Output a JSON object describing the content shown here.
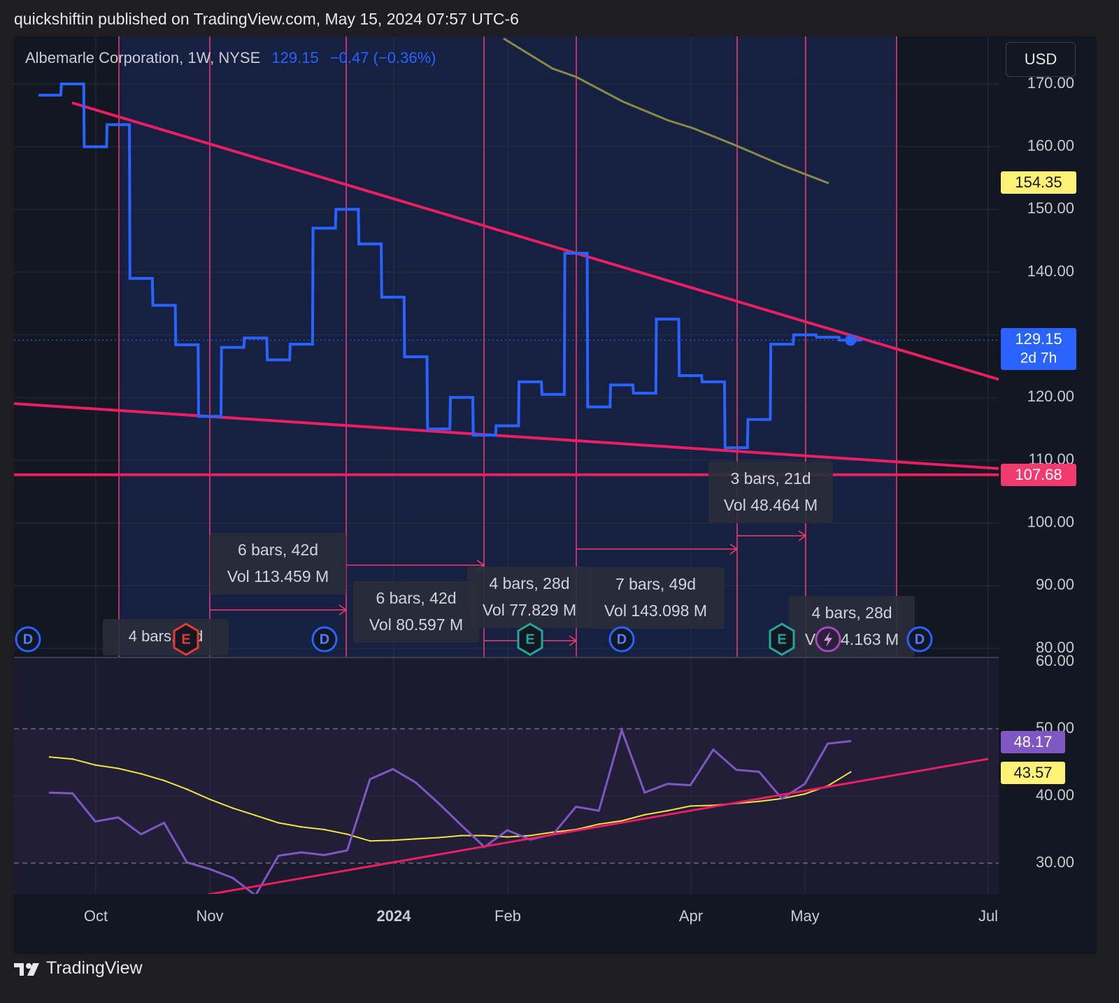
{
  "header": {
    "publisher_line": "quickshiftin published on TradingView.com, May 15, 2024 07:57 UTC-6"
  },
  "legend": {
    "symbol": "Albemarle Corporation, 1W, NYSE",
    "last": "129.15",
    "change": "−0.47 (−0.36%)"
  },
  "toolbar": {
    "currency": "USD"
  },
  "footer": {
    "brand": "TradingView",
    "logo_icon": "tradingview-logo-icon"
  },
  "colors": {
    "price_line": "#2962ff",
    "ma_line": "#8b8a45",
    "trendline": "#e91e63",
    "marker_line": "#f23a6e",
    "rsi_line": "#7e57c2",
    "rsi_ma": "#f0e442",
    "price_label_blue": "#2962ff",
    "price_label_yellow": "#fff176",
    "price_label_pink": "#f23a6e",
    "rsi_label_purple": "#7e57c2"
  },
  "chart_data": [
    {
      "type": "line",
      "title": "Albemarle Corporation, 1W, NYSE",
      "x": [
        "2023-09-11",
        "2023-09-18",
        "2023-09-25",
        "2023-10-02",
        "2023-10-09",
        "2023-10-16",
        "2023-10-23",
        "2023-10-30",
        "2023-11-06",
        "2023-11-13",
        "2023-11-20",
        "2023-11-27",
        "2023-12-04",
        "2023-12-11",
        "2023-12-18",
        "2023-12-25",
        "2024-01-01",
        "2024-01-08",
        "2024-01-15",
        "2024-01-22",
        "2024-01-29",
        "2024-02-05",
        "2024-02-12",
        "2024-02-19",
        "2024-02-26",
        "2024-03-04",
        "2024-03-11",
        "2024-03-18",
        "2024-03-25",
        "2024-04-01",
        "2024-04-08",
        "2024-04-15",
        "2024-04-22",
        "2024-04-29",
        "2024-05-06",
        "2024-05-13"
      ],
      "series": [
        {
          "values": [
            168.2,
            170.0,
            160.0,
            163.5,
            139.0,
            134.7,
            128.4,
            117.0,
            128.0,
            129.5,
            126.0,
            128.5,
            147.0,
            150.0,
            144.5,
            136.0,
            126.5,
            115.0,
            120.0,
            114.0,
            115.5,
            122.5,
            120.5,
            143.0,
            118.5,
            122.0,
            120.7,
            132.5,
            123.5,
            122.5,
            112.0,
            116.5,
            128.5,
            130.0,
            129.62,
            129.15
          ]
        }
      ],
      "price_labels": [
        "154.35",
        "129.15",
        "2d 7h",
        "107.68"
      ],
      "y_ticks": [
        "170.00",
        "160.00",
        "150.00",
        "140.00",
        "130.00",
        "120.00",
        "110.00",
        "100.00",
        "90.00",
        "80.00"
      ],
      "ylim": [
        80,
        173
      ],
      "x_ticks": [
        "Oct",
        "Nov",
        "2024",
        "Feb",
        "Apr",
        "May",
        "Jul"
      ],
      "horizontal_level": 107.68,
      "range_labels": [
        {
          "bars": "4 bars, 28d",
          "vol": "4 bars, E d"
        },
        {
          "bars": "6 bars, 42d",
          "vol": "Vol 113.459 M"
        },
        {
          "bars": "6 bars, 42d",
          "vol": "Vol 80.597 M"
        },
        {
          "bars": "4 bars, 28d",
          "vol": "Vol 77.829 M"
        },
        {
          "bars": "7 bars, 49d",
          "vol": "Vol 143.098 M"
        },
        {
          "bars": "3 bars, 21d",
          "vol": "Vol 48.464 M"
        },
        {
          "bars": "4 bars, 28d",
          "vol": "Vol 54.163 M"
        }
      ],
      "event_icons": [
        "dividend-icon",
        "earnings-icon",
        "dividend-icon",
        "earnings-icon",
        "dividend-icon",
        "earnings-icon",
        "split-icon",
        "dividend-icon"
      ],
      "event_letters": {
        "dividend": "D",
        "earnings": "E"
      }
    },
    {
      "type": "line",
      "title": "",
      "x": [
        "2023-09-11",
        "2023-09-18",
        "2023-09-25",
        "2023-10-02",
        "2023-10-09",
        "2023-10-16",
        "2023-10-23",
        "2023-10-30",
        "2023-11-06",
        "2023-11-13",
        "2023-11-20",
        "2023-11-27",
        "2023-12-04",
        "2023-12-11",
        "2023-12-18",
        "2023-12-25",
        "2024-01-01",
        "2024-01-08",
        "2024-01-15",
        "2024-01-22",
        "2024-01-29",
        "2024-02-05",
        "2024-02-12",
        "2024-02-19",
        "2024-02-26",
        "2024-03-04",
        "2024-03-11",
        "2024-03-18",
        "2024-03-25",
        "2024-04-01",
        "2024-04-08",
        "2024-04-15",
        "2024-04-22",
        "2024-04-29",
        "2024-05-06",
        "2024-05-13"
      ],
      "series": [
        {
          "values": [
            40.5,
            40.4,
            36.2,
            36.8,
            34.3,
            36.0,
            30.1,
            29.1,
            27.8,
            25.2,
            31.1,
            31.6,
            31.2,
            31.9,
            42.5,
            44.0,
            42.0,
            38.9,
            35.6,
            32.4,
            34.9,
            33.5,
            34.3,
            38.4,
            37.8,
            49.8,
            40.5,
            41.8,
            41.6,
            46.9,
            43.9,
            43.6,
            39.6,
            41.8,
            47.8,
            48.17
          ]
        },
        {
          "values": [
            45.8,
            45.5,
            44.6,
            44.1,
            43.3,
            42.3,
            41.0,
            39.5,
            38.2,
            37.1,
            36.0,
            35.4,
            35.0,
            34.3,
            33.3,
            33.4,
            33.6,
            33.8,
            34.1,
            34.1,
            33.9,
            34.1,
            34.6,
            35.0,
            35.8,
            36.3,
            37.2,
            37.8,
            38.5,
            38.6,
            38.9,
            39.2,
            39.6,
            40.3,
            41.5,
            43.57
          ]
        }
      ],
      "y_ticks": [
        "60.00",
        "50.00",
        "40.00",
        "30.00"
      ],
      "ylim": [
        25,
        60
      ],
      "value_labels": [
        "48.17",
        "43.57"
      ]
    }
  ]
}
